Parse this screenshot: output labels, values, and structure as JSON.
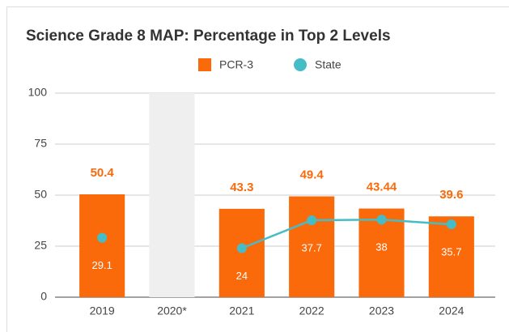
{
  "chart_data": {
    "type": "bar_line",
    "title": "Science Grade 8 MAP: Percentage in Top 2 Levels",
    "categories": [
      "2019",
      "2020*",
      "2021",
      "2022",
      "2023",
      "2024"
    ],
    "series": [
      {
        "name": "PCR-3",
        "type": "bar",
        "color": "#fa6a0a",
        "values": [
          50.4,
          null,
          43.3,
          49.4,
          43.44,
          39.6
        ]
      },
      {
        "name": "State",
        "type": "line",
        "color": "#46bdc6",
        "values": [
          29.1,
          null,
          24,
          37.7,
          38,
          35.7
        ]
      }
    ],
    "ylim": [
      0,
      100
    ],
    "yticks": [
      0,
      25,
      50,
      75,
      100
    ],
    "grid": true,
    "legend": "top"
  }
}
